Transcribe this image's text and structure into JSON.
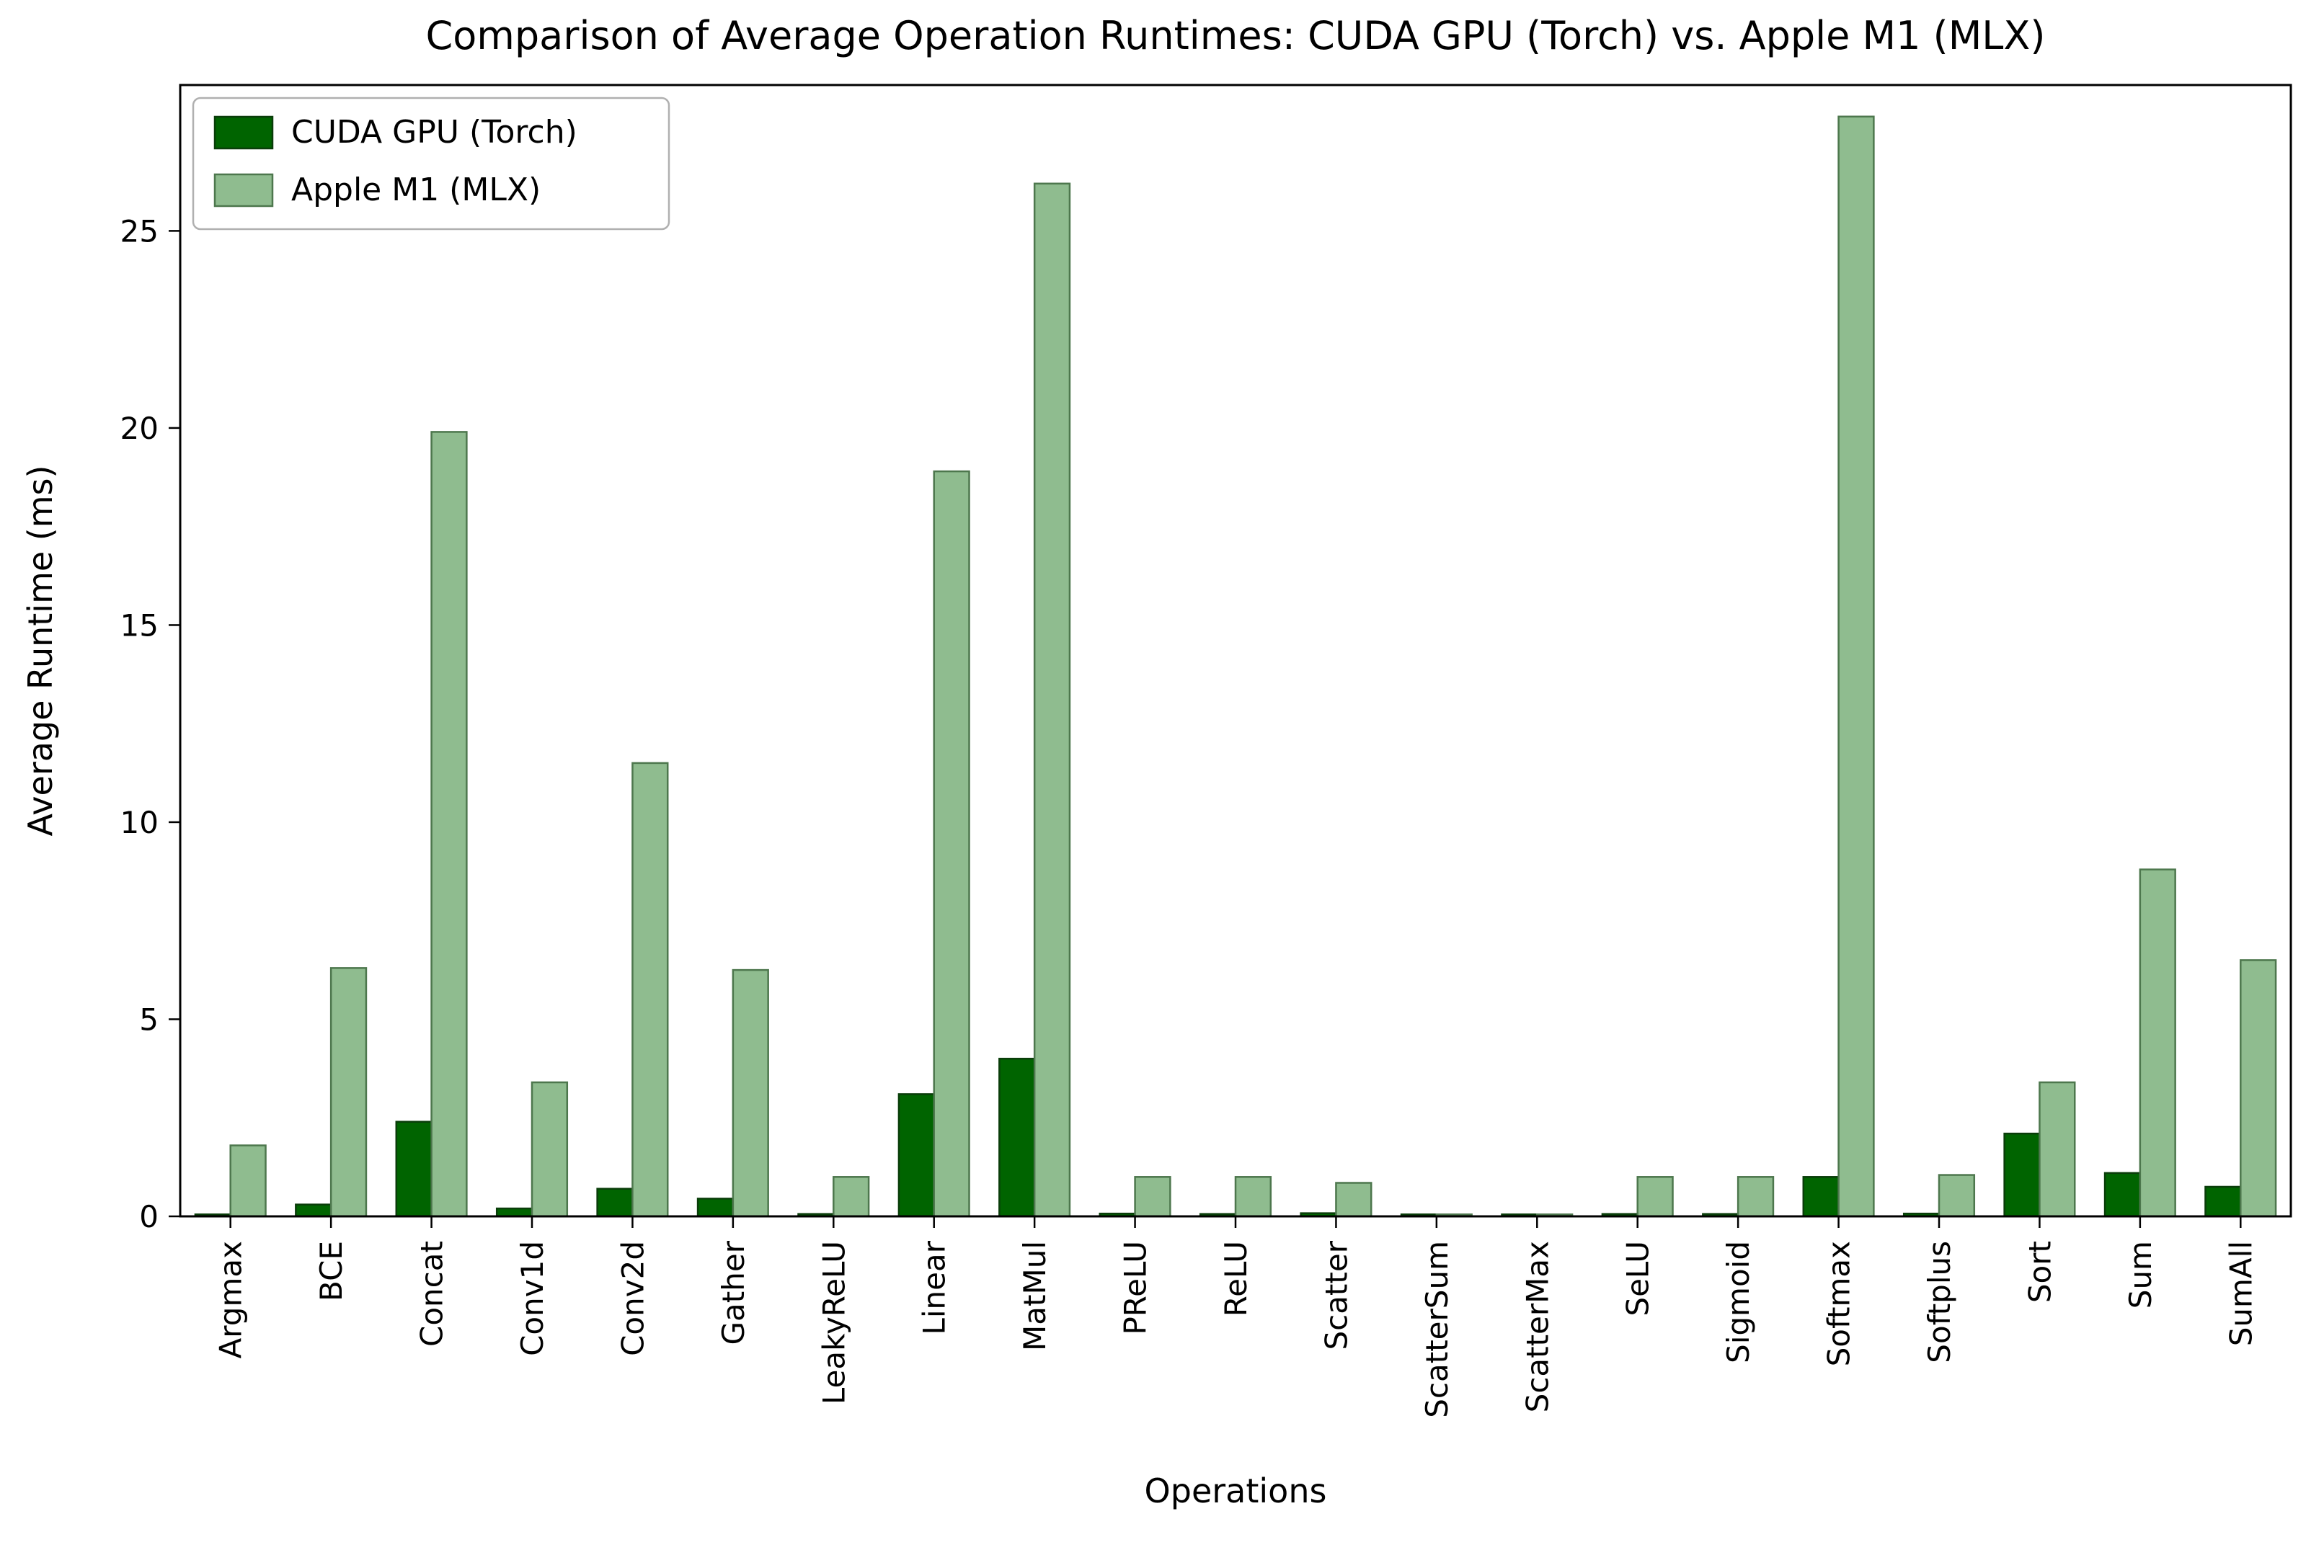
{
  "chart_data": {
    "type": "bar",
    "title": "Comparison of Average Operation Runtimes: CUDA GPU (Torch) vs. Apple M1 (MLX)",
    "xlabel": "Operations",
    "ylabel": "Average Runtime (ms)",
    "ylim": [
      0,
      28.7
    ],
    "yticks": [
      0,
      5,
      10,
      15,
      20,
      25
    ],
    "grid": false,
    "legend_position": "upper left",
    "categories": [
      "Argmax",
      "BCE",
      "Concat",
      "Conv1d",
      "Conv2d",
      "Gather",
      "LeakyReLU",
      "Linear",
      "MatMul",
      "PReLU",
      "ReLU",
      "Scatter",
      "ScatterSum",
      "ScatterMax",
      "SeLU",
      "Sigmoid",
      "Softmax",
      "Softplus",
      "Sort",
      "Sum",
      "SumAll"
    ],
    "series": [
      {
        "name": "CUDA GPU (Torch)",
        "color": "#006400",
        "edge_color": "#0a3d0a",
        "values": [
          0.05,
          0.3,
          2.4,
          0.2,
          0.7,
          0.45,
          0.06,
          3.1,
          4.0,
          0.07,
          0.06,
          0.08,
          0.05,
          0.05,
          0.06,
          0.06,
          1.0,
          0.07,
          2.1,
          1.1,
          0.75
        ]
      },
      {
        "name": "Apple M1 (MLX)",
        "color": "#8fbc8f",
        "edge_color": "#4d774d",
        "values": [
          1.8,
          6.3,
          19.9,
          3.4,
          11.5,
          6.25,
          1.0,
          18.9,
          26.2,
          1.0,
          1.0,
          0.85,
          0.05,
          0.05,
          1.0,
          1.0,
          27.9,
          1.05,
          3.4,
          8.8,
          6.5
        ]
      }
    ],
    "axis_color": "#000000",
    "legend_border_color": "#b0b0b0",
    "background_color": "#ffffff"
  }
}
